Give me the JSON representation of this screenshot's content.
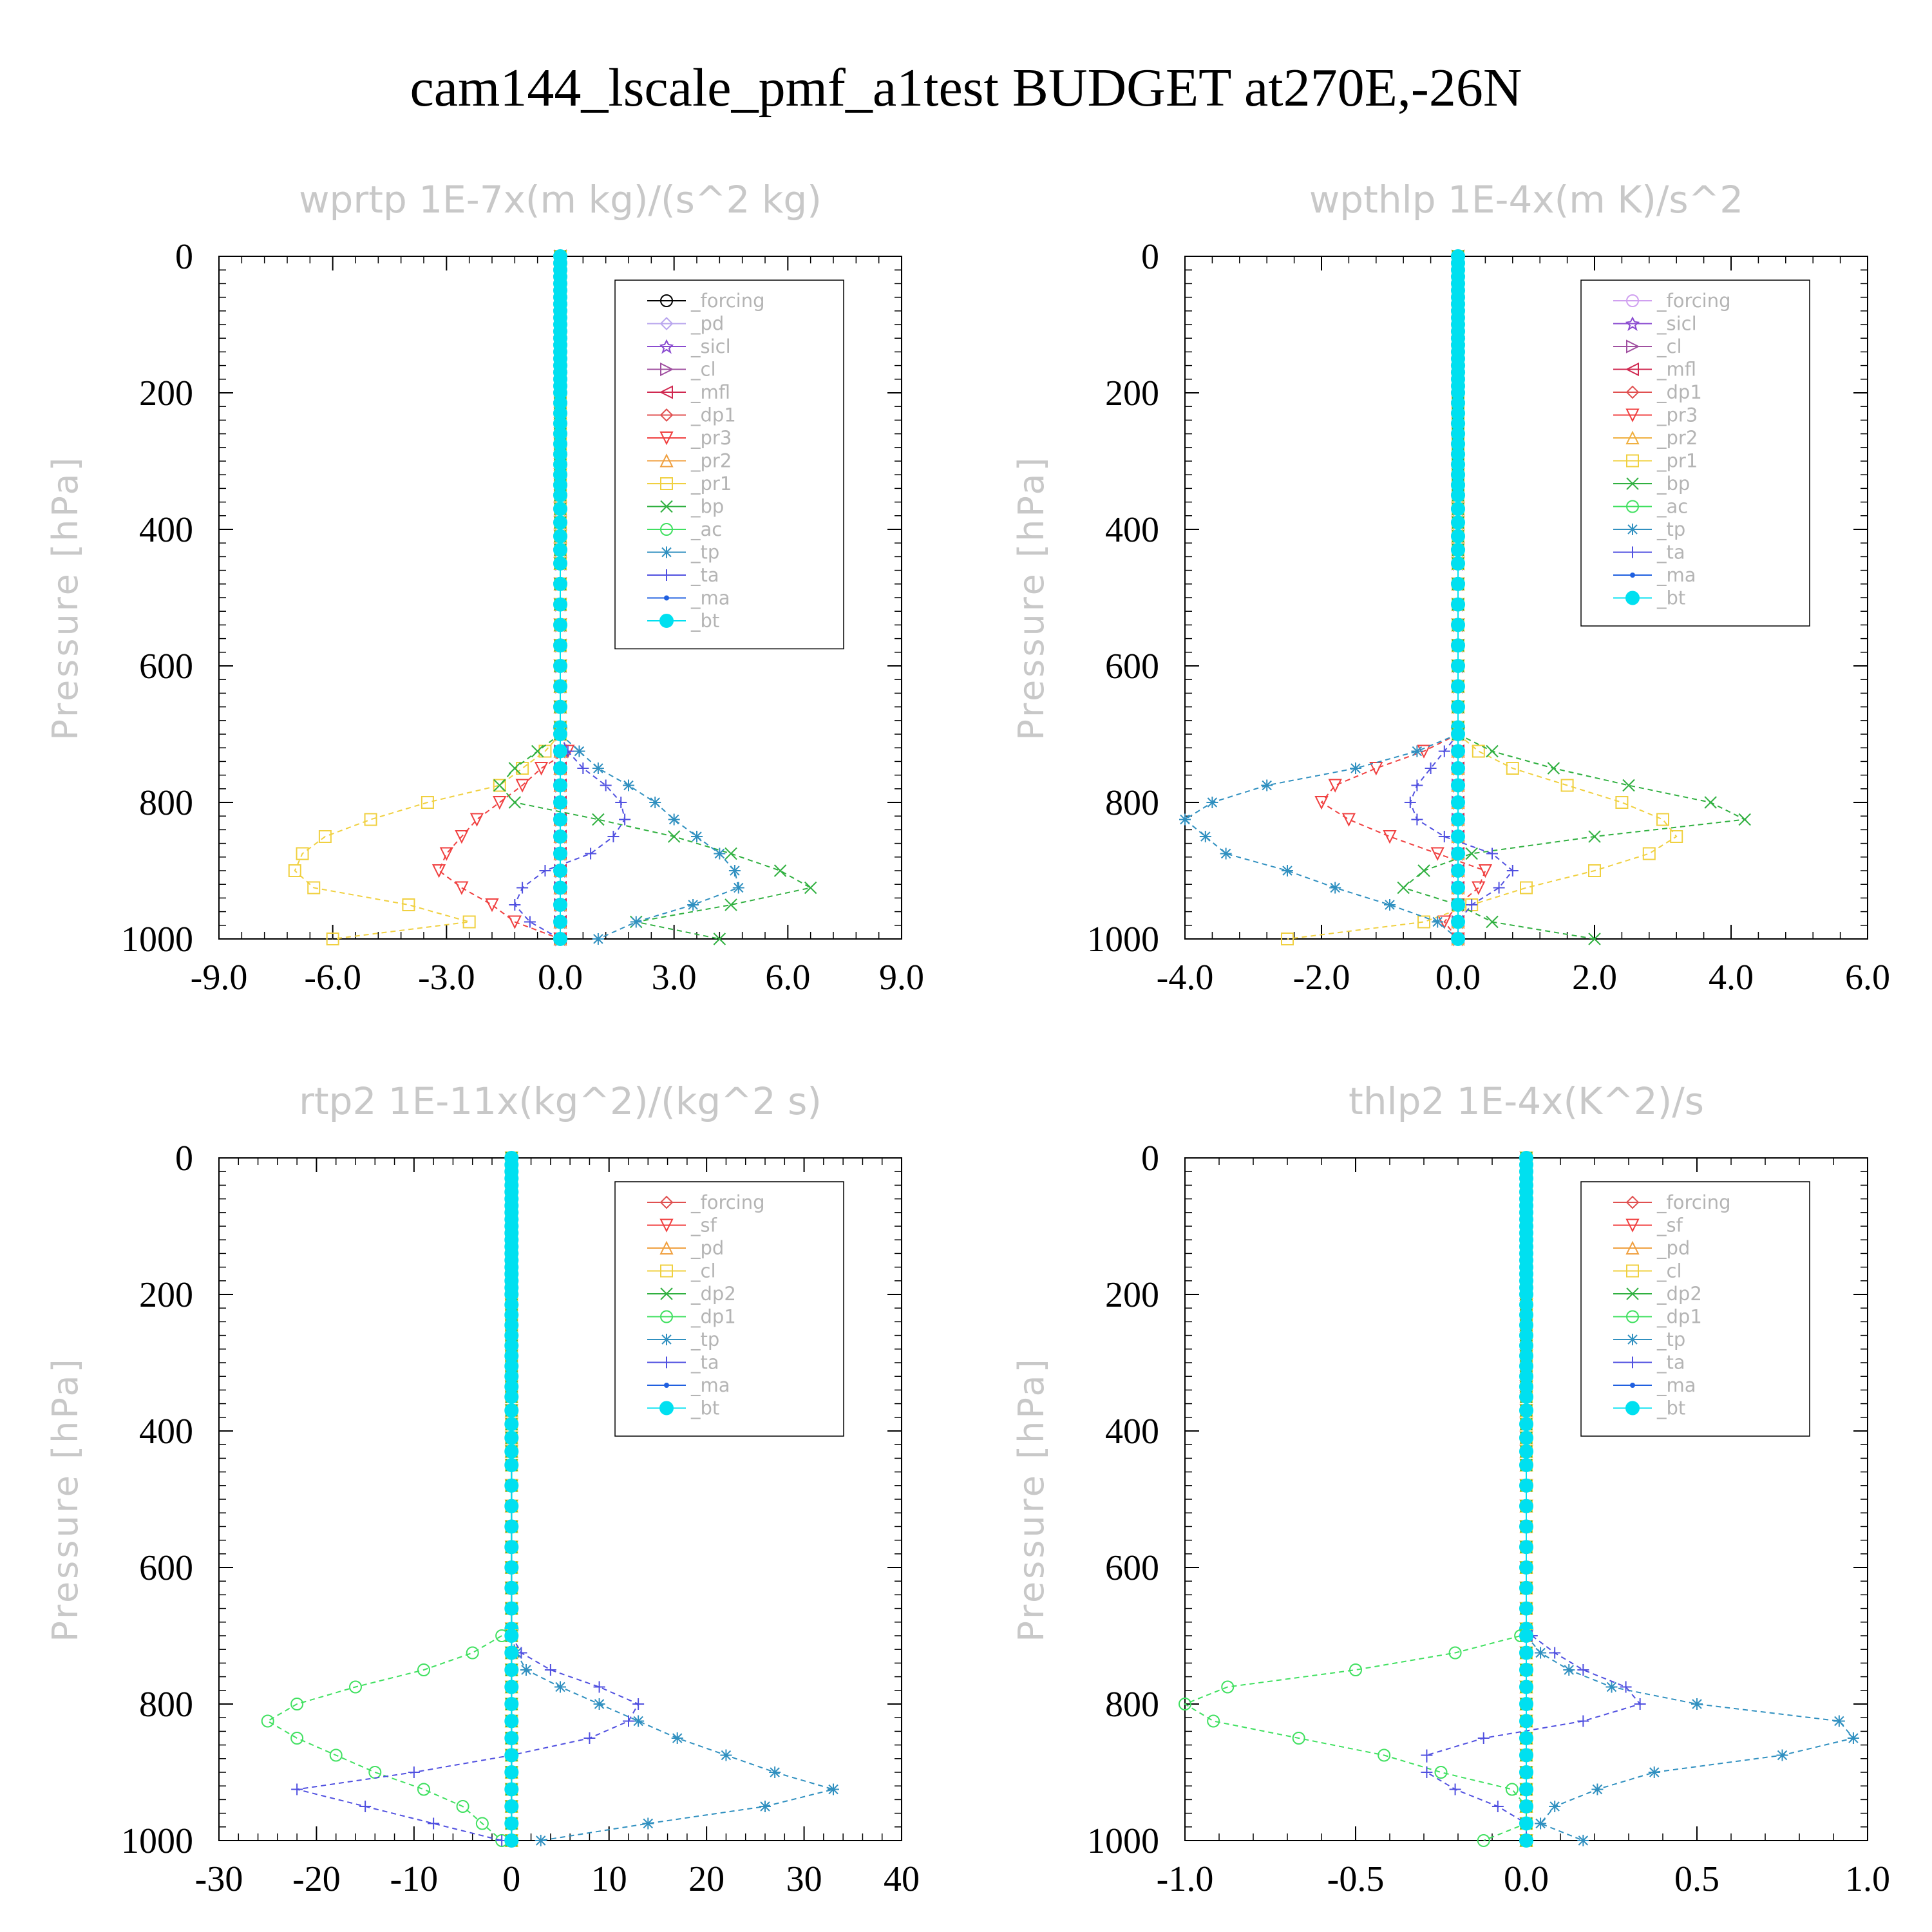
{
  "title": "cam144_lscale_pmf_a1test  BUDGET at270E,-26N",
  "chart_data": [
    {
      "type": "line",
      "title": "wprtp  1E-7x(m kg)/(s^2 kg)",
      "ylabel": "Pressure [hPa]",
      "xlim": [
        -9,
        9
      ],
      "ylim": [
        0,
        1000
      ],
      "y_inverted": true,
      "xticks": [
        "-9.0",
        "-6.0",
        "-3.0",
        "0.0",
        "3.0",
        "6.0",
        "9.0"
      ],
      "yticks": [
        "0",
        "200",
        "400",
        "600",
        "800",
        "1000"
      ],
      "legend_position": "top-right",
      "pressure": [
        700,
        725,
        750,
        775,
        800,
        825,
        850,
        875,
        900,
        925,
        950,
        975,
        1000
      ],
      "series": [
        {
          "name": "_forcing",
          "color": "#000000",
          "marker": "circle",
          "values": [
            0,
            0,
            0,
            0,
            0,
            0,
            0,
            0,
            0,
            0,
            0,
            0,
            0
          ]
        },
        {
          "name": "_pd",
          "color": "#b9a6ee",
          "marker": "diamond",
          "values": [
            0,
            0,
            0,
            0,
            0,
            0,
            0,
            0,
            0,
            0,
            0,
            0,
            0
          ]
        },
        {
          "name": "_sicl",
          "color": "#8a4bd0",
          "marker": "star",
          "values": [
            0,
            0,
            0,
            0,
            0,
            0,
            0,
            0,
            0,
            0,
            0,
            0,
            0
          ]
        },
        {
          "name": "_cl",
          "color": "#a050a0",
          "marker": "tri-right",
          "values": [
            0,
            0,
            0,
            0,
            0,
            0,
            0,
            0,
            0,
            0,
            0,
            0,
            0
          ]
        },
        {
          "name": "_mfl",
          "color": "#d02850",
          "marker": "tri-left",
          "values": [
            0,
            0,
            0,
            0,
            0,
            0,
            0,
            0,
            0,
            0,
            0,
            0,
            0
          ]
        },
        {
          "name": "_dp1",
          "color": "#e05050",
          "marker": "diamond",
          "values": [
            0,
            0,
            0,
            0,
            0,
            0,
            0,
            0,
            0,
            0,
            0,
            0,
            0
          ]
        },
        {
          "name": "_pr3",
          "color": "#f04040",
          "marker": "tri-down",
          "values": [
            0,
            0.2,
            -0.5,
            -1,
            -1.6,
            -2.2,
            -2.6,
            -3,
            -3.2,
            -2.6,
            -1.8,
            -1.2,
            0
          ]
        },
        {
          "name": "_pr2",
          "color": "#f0a040",
          "marker": "tri-up",
          "values": [
            0,
            0,
            0,
            0,
            0,
            0,
            0,
            0,
            0,
            0,
            0,
            0,
            0
          ]
        },
        {
          "name": "_pr1",
          "color": "#f0d040",
          "marker": "square",
          "values": [
            0,
            -0.4,
            -1,
            -1.6,
            -3.5,
            -5,
            -6.2,
            -6.8,
            -7,
            -6.5,
            -4,
            -2.4,
            -6
          ]
        },
        {
          "name": "_bp",
          "color": "#30b040",
          "marker": "x",
          "values": [
            0,
            -0.6,
            -1.2,
            -1.6,
            -1.2,
            1,
            3,
            4.5,
            5.8,
            6.6,
            4.5,
            2,
            4.2
          ]
        },
        {
          "name": "_ac",
          "color": "#40e060",
          "marker": "circle",
          "values": [
            0,
            0,
            0,
            0,
            0,
            0,
            0,
            0,
            0,
            0,
            0,
            0,
            0
          ]
        },
        {
          "name": "_tp",
          "color": "#3090c0",
          "marker": "asterisk",
          "values": [
            0,
            0.5,
            1,
            1.8,
            2.5,
            3,
            3.6,
            4.2,
            4.6,
            4.7,
            3.5,
            2,
            1
          ]
        },
        {
          "name": "_ta",
          "color": "#5050e0",
          "marker": "plus",
          "values": [
            0,
            0.2,
            0.6,
            1.2,
            1.6,
            1.7,
            1.4,
            0.8,
            -0.4,
            -1,
            -1.2,
            -0.8,
            0
          ]
        },
        {
          "name": "_ma",
          "color": "#2060e0",
          "marker": "dot",
          "values": [
            0,
            0,
            0,
            0,
            0,
            0,
            0,
            0,
            0,
            0,
            0,
            0,
            0
          ]
        },
        {
          "name": "_bt",
          "color": "#00e0f0",
          "marker": "filled-circle",
          "values": [
            0,
            0,
            0,
            0,
            0,
            0,
            0,
            0,
            0,
            0,
            0,
            0,
            0
          ]
        }
      ]
    },
    {
      "type": "line",
      "title": "wpthlp  1E-4x(m K)/s^2",
      "ylabel": "Pressure [hPa]",
      "xlim": [
        -4,
        6
      ],
      "ylim": [
        0,
        1000
      ],
      "y_inverted": true,
      "xticks": [
        "-4.0",
        "-2.0",
        "0.0",
        "2.0",
        "4.0",
        "6.0"
      ],
      "yticks": [
        "0",
        "200",
        "400",
        "600",
        "800",
        "1000"
      ],
      "legend_position": "top-right",
      "pressure": [
        700,
        725,
        750,
        775,
        800,
        825,
        850,
        875,
        900,
        925,
        950,
        975,
        1000
      ],
      "series": [
        {
          "name": "_forcing",
          "color": "#d0a0f0",
          "marker": "circle",
          "values": [
            0,
            0,
            0,
            0,
            0,
            0,
            0,
            0,
            0,
            0,
            0,
            0,
            0
          ]
        },
        {
          "name": "_sicl",
          "color": "#8a4bd0",
          "marker": "star",
          "values": [
            0,
            0,
            0,
            0,
            0,
            0,
            0,
            0,
            0,
            0,
            0,
            0,
            0
          ]
        },
        {
          "name": "_cl",
          "color": "#a050a0",
          "marker": "tri-right",
          "values": [
            0,
            0,
            0,
            0,
            0,
            0,
            0,
            0,
            0,
            0,
            0,
            0,
            0
          ]
        },
        {
          "name": "_mfl",
          "color": "#d02850",
          "marker": "tri-left",
          "values": [
            0,
            0,
            0,
            0,
            0,
            0,
            0,
            0,
            0,
            0,
            0,
            0,
            0
          ]
        },
        {
          "name": "_dp1",
          "color": "#e05050",
          "marker": "diamond",
          "values": [
            0,
            0,
            0,
            0,
            0,
            0,
            0,
            0,
            0,
            0,
            0,
            0,
            0
          ]
        },
        {
          "name": "_pr3",
          "color": "#f04040",
          "marker": "tri-down",
          "values": [
            0,
            -0.5,
            -1.2,
            -1.8,
            -2,
            -1.6,
            -1,
            -0.3,
            0.4,
            0.3,
            0,
            -0.2,
            0
          ]
        },
        {
          "name": "_pr2",
          "color": "#f0b040",
          "marker": "tri-up",
          "values": [
            0,
            0,
            0,
            0,
            0,
            0,
            0,
            0,
            0,
            0,
            0,
            0,
            0
          ]
        },
        {
          "name": "_pr1",
          "color": "#f0d040",
          "marker": "square",
          "values": [
            0,
            0.3,
            0.8,
            1.6,
            2.4,
            3,
            3.2,
            2.8,
            2,
            1,
            0.2,
            -0.5,
            -2.5
          ]
        },
        {
          "name": "_bp",
          "color": "#30b040",
          "marker": "x",
          "values": [
            0,
            0.5,
            1.4,
            2.5,
            3.7,
            4.2,
            2,
            0.2,
            -0.5,
            -0.8,
            0,
            0.5,
            2
          ]
        },
        {
          "name": "_ac",
          "color": "#40e060",
          "marker": "circle",
          "values": [
            0,
            0,
            0,
            0,
            0,
            0,
            0,
            0,
            0,
            0,
            0,
            0,
            0
          ]
        },
        {
          "name": "_tp",
          "color": "#3090c0",
          "marker": "asterisk",
          "values": [
            0,
            -0.6,
            -1.5,
            -2.8,
            -3.6,
            -4,
            -3.7,
            -3.4,
            -2.5,
            -1.8,
            -1,
            -0.3,
            0
          ]
        },
        {
          "name": "_ta",
          "color": "#5050e0",
          "marker": "plus",
          "values": [
            0,
            -0.2,
            -0.4,
            -0.6,
            -0.7,
            -0.6,
            -0.2,
            0.5,
            0.8,
            0.6,
            0.2,
            0,
            0
          ]
        },
        {
          "name": "_ma",
          "color": "#2060e0",
          "marker": "dot",
          "values": [
            0,
            0,
            0,
            0,
            0,
            0,
            0,
            0,
            0,
            0,
            0,
            0,
            0
          ]
        },
        {
          "name": "_bt",
          "color": "#00e0f0",
          "marker": "filled-circle",
          "values": [
            0,
            0,
            0,
            0,
            0,
            0,
            0,
            0,
            0,
            0,
            0,
            0,
            0
          ]
        }
      ]
    },
    {
      "type": "line",
      "title": "rtp2  1E-11x(kg^2)/(kg^2 s)",
      "ylabel": "Pressure [hPa]",
      "xlim": [
        -30,
        40
      ],
      "ylim": [
        0,
        1000
      ],
      "y_inverted": true,
      "xticks": [
        "-30",
        "-20",
        "-10",
        "0",
        "10",
        "20",
        "30",
        "40"
      ],
      "yticks": [
        "0",
        "200",
        "400",
        "600",
        "800",
        "1000"
      ],
      "legend_position": "top-right",
      "pressure": [
        700,
        725,
        750,
        775,
        800,
        825,
        850,
        875,
        900,
        925,
        950,
        975,
        1000
      ],
      "series": [
        {
          "name": "_forcing",
          "color": "#e05050",
          "marker": "diamond",
          "values": [
            0,
            0,
            0,
            0,
            0,
            0,
            0,
            0,
            0,
            0,
            0,
            0,
            0
          ]
        },
        {
          "name": "_sf",
          "color": "#f04040",
          "marker": "tri-down",
          "values": [
            0,
            0,
            0,
            0,
            0,
            0,
            0,
            0,
            0,
            0,
            0,
            0,
            0
          ]
        },
        {
          "name": "_pd",
          "color": "#f0a040",
          "marker": "tri-up",
          "values": [
            0,
            0,
            0,
            0,
            0,
            0,
            0,
            0,
            0,
            0,
            0,
            0,
            0
          ]
        },
        {
          "name": "_cl",
          "color": "#f0d040",
          "marker": "square",
          "values": [
            0,
            0,
            0,
            0,
            0,
            0,
            0,
            0,
            0,
            0,
            0,
            0,
            0
          ]
        },
        {
          "name": "_dp2",
          "color": "#30b040",
          "marker": "x",
          "values": [
            0,
            0,
            0,
            0,
            0,
            0,
            0,
            0,
            0,
            0,
            0,
            0,
            0
          ]
        },
        {
          "name": "_dp1",
          "color": "#40e060",
          "marker": "circle",
          "values": [
            -1,
            -4,
            -9,
            -16,
            -22,
            -25,
            -22,
            -18,
            -14,
            -9,
            -5,
            -3,
            -1
          ]
        },
        {
          "name": "_tp",
          "color": "#3090c0",
          "marker": "asterisk",
          "values": [
            0,
            0.5,
            1.5,
            5,
            9,
            13,
            17,
            22,
            27,
            33,
            26,
            14,
            3
          ]
        },
        {
          "name": "_ta",
          "color": "#5050e0",
          "marker": "plus",
          "values": [
            0,
            1,
            4,
            9,
            13,
            12,
            8,
            0,
            -10,
            -22,
            -15,
            -8,
            -1
          ]
        },
        {
          "name": "_ma",
          "color": "#2060e0",
          "marker": "dot",
          "values": [
            0,
            0,
            0,
            0,
            0,
            0,
            0,
            0,
            0,
            0,
            0,
            0,
            0
          ]
        },
        {
          "name": "_bt",
          "color": "#00e0f0",
          "marker": "filled-circle",
          "values": [
            0,
            0,
            0,
            0,
            0,
            0,
            0,
            0,
            0,
            0,
            0,
            0,
            0
          ]
        }
      ]
    },
    {
      "type": "line",
      "title": "thlp2  1E-4x(K^2)/s",
      "ylabel": "Pressure [hPa]",
      "xlim": [
        -1.2,
        1.2
      ],
      "ylim": [
        0,
        1000
      ],
      "y_inverted": true,
      "xticks": [
        "-1.0",
        "-0.5",
        "0.0",
        "0.5",
        "1.0"
      ],
      "yticks": [
        "0",
        "200",
        "400",
        "600",
        "800",
        "1000"
      ],
      "legend_position": "top-right",
      "pressure": [
        700,
        725,
        750,
        775,
        800,
        825,
        850,
        875,
        900,
        925,
        950,
        975,
        1000
      ],
      "series": [
        {
          "name": "_forcing",
          "color": "#e05050",
          "marker": "diamond",
          "values": [
            0,
            0,
            0,
            0,
            0,
            0,
            0,
            0,
            0,
            0,
            0,
            0,
            0
          ]
        },
        {
          "name": "_sf",
          "color": "#f04040",
          "marker": "tri-down",
          "values": [
            0,
            0,
            0,
            0,
            0,
            0,
            0,
            0,
            0,
            0,
            0,
            0,
            0
          ]
        },
        {
          "name": "_pd",
          "color": "#f0a040",
          "marker": "tri-up",
          "values": [
            0,
            0,
            0,
            0,
            0,
            0,
            0,
            0,
            0,
            0,
            0,
            0,
            0
          ]
        },
        {
          "name": "_cl",
          "color": "#f0d040",
          "marker": "square",
          "values": [
            0,
            0,
            0,
            0,
            0,
            0,
            0,
            0,
            0,
            0,
            0,
            0,
            0
          ]
        },
        {
          "name": "_dp2",
          "color": "#30b040",
          "marker": "x",
          "values": [
            0,
            0,
            0,
            0,
            0,
            0,
            0,
            0,
            0,
            0,
            0,
            0,
            0
          ]
        },
        {
          "name": "_dp1",
          "color": "#40e060",
          "marker": "circle",
          "values": [
            -0.02,
            -0.25,
            -0.6,
            -1.05,
            -1.2,
            -1.1,
            -0.8,
            -0.5,
            -0.3,
            -0.05,
            0,
            0,
            -0.15
          ]
        },
        {
          "name": "_tp",
          "color": "#3090c0",
          "marker": "asterisk",
          "values": [
            0,
            0.05,
            0.15,
            0.3,
            0.6,
            1.1,
            1.15,
            0.9,
            0.45,
            0.25,
            0.1,
            0.05,
            0.2
          ]
        },
        {
          "name": "_ta",
          "color": "#5050e0",
          "marker": "plus",
          "values": [
            0.02,
            0.1,
            0.2,
            0.35,
            0.4,
            0.2,
            -0.15,
            -0.35,
            -0.35,
            -0.25,
            -0.1,
            0,
            0
          ]
        },
        {
          "name": "_ma",
          "color": "#2060e0",
          "marker": "dot",
          "values": [
            0,
            0,
            0,
            0,
            0,
            0,
            0,
            0,
            0,
            0,
            0,
            0,
            0
          ]
        },
        {
          "name": "_bt",
          "color": "#00e0f0",
          "marker": "filled-circle",
          "values": [
            0,
            0,
            0,
            0,
            0,
            0,
            0,
            0,
            0,
            0,
            0,
            0,
            0
          ]
        }
      ]
    }
  ]
}
